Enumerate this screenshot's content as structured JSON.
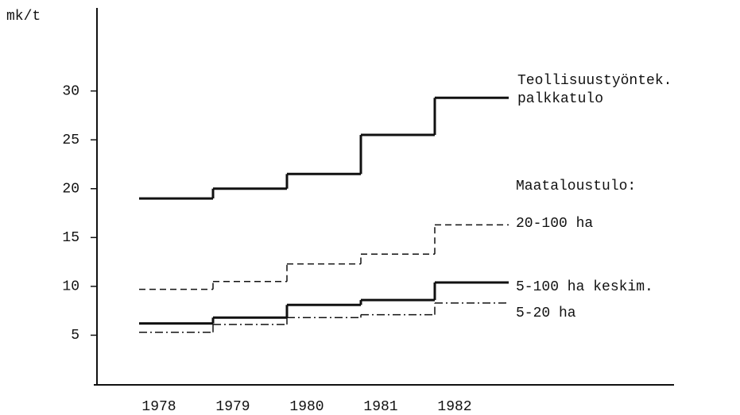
{
  "chart_data": {
    "type": "step",
    "y_label": "mk/t",
    "categories": [
      "1978",
      "1979",
      "1980",
      "1981",
      "1982"
    ],
    "ylim": [
      0,
      38.5
    ],
    "yticks": [
      5,
      10,
      15,
      20,
      25,
      30
    ],
    "legend_title": "Maataloustulo:",
    "series": [
      {
        "name": "Teollisuustyöntek. palkkatulo",
        "color": "#111111",
        "style": "solid",
        "width": 3,
        "values": [
          19,
          20,
          21.5,
          25.5,
          29.3
        ]
      },
      {
        "name": "20-100 ha",
        "color": "#111111",
        "style": "dashed",
        "width": 1.5,
        "values": [
          9.7,
          10.5,
          12.3,
          13.3,
          16.3
        ]
      },
      {
        "name": "5-100 ha keskim.",
        "color": "#111111",
        "style": "solid",
        "width": 3,
        "values": [
          6.2,
          6.8,
          8.1,
          8.6,
          10.4
        ]
      },
      {
        "name": "5-20 ha",
        "color": "#111111",
        "style": "dashdot",
        "width": 1.5,
        "values": [
          5.3,
          6.1,
          6.8,
          7.1,
          8.3
        ]
      }
    ]
  }
}
